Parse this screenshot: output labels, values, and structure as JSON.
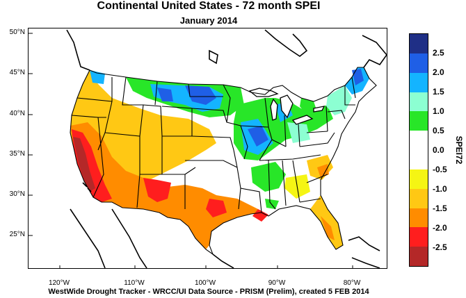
{
  "title": "Continental United States - 72 month SPEI",
  "subtitle": "January 2014",
  "footer": "WestWide Drought Tracker - WRCC/UI  Data Source - PRISM (Prelim), created  5 FEB 2014",
  "axes": {
    "lat_labels": [
      "50°N",
      "45°N",
      "40°N",
      "35°N",
      "30°N",
      "25°N"
    ],
    "lon_labels": [
      "120°W",
      "110°W",
      "100°W",
      "90°W",
      "80°W"
    ]
  },
  "legend": {
    "title": "SPEI72",
    "ticks": [
      "2.5",
      "2.0",
      "1.5",
      "1.0",
      "0.5",
      "0.0",
      "-0.5",
      "-1.0",
      "-1.5",
      "-2.0",
      "-2.5"
    ],
    "colors": [
      "#1f2f86",
      "#1f5fe6",
      "#14b4ff",
      "#8cffd2",
      "#28e628",
      "#ffffff",
      "#ffffff",
      "#f5f514",
      "#ffc814",
      "#ff8c00",
      "#ff1e1e",
      "#b42828"
    ]
  },
  "map": {
    "colors": {
      "very_dry": "#b42828",
      "dry_red": "#ff1e1e",
      "dry_orange": "#ff8c00",
      "dry_gold": "#ffc814",
      "dry_yellow": "#f5f514",
      "neutral": "#ffffff",
      "wet_green": "#28e628",
      "wet_aqua": "#8cffd2",
      "wet_cyan": "#14b4ff",
      "wet_blue": "#1f5fe6",
      "very_wet": "#1f2f86"
    }
  }
}
